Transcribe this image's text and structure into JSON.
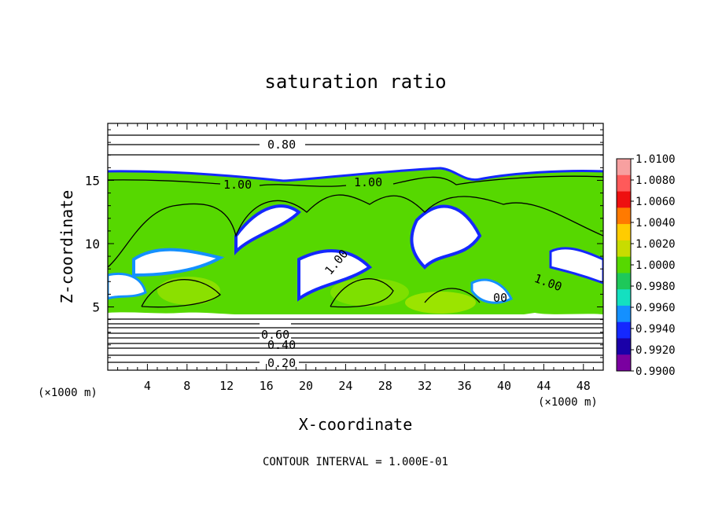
{
  "chart_data": {
    "type": "heatmap",
    "title": "saturation ratio",
    "xlabel": "X-coordinate",
    "ylabel": "Z-coordinate",
    "x_units": "(×1000 m)",
    "z_units": "(×1000 m)",
    "xlim": [
      0,
      50
    ],
    "zlim": [
      0,
      19.5
    ],
    "x_ticks": [
      "4",
      "8",
      "12",
      "16",
      "20",
      "24",
      "28",
      "32",
      "36",
      "40",
      "44",
      "48"
    ],
    "z_ticks": [
      "5",
      "10",
      "15"
    ],
    "contour_interval_text": "CONTOUR INTERVAL = 1.000E-01",
    "contour_labels": [
      "0.80",
      "1.00",
      "1.00",
      "1.00",
      "1.00",
      "00",
      "0.60",
      "0.40",
      "0.20"
    ],
    "colorbar": {
      "levels": [
        "1.0100",
        "1.0080",
        "1.0060",
        "1.0040",
        "1.0020",
        "1.0000",
        "0.9980",
        "0.9960",
        "0.9940",
        "0.9920",
        "0.9900"
      ],
      "colors": [
        "#f7a0a0",
        "#ff5a5a",
        "#ee1010",
        "#ff7a00",
        "#ffcc00",
        "#c8dc00",
        "#56d800",
        "#1ec85a",
        "#14e0c0",
        "#1490ff",
        "#1428ff",
        "#1a00a8",
        "#7a00a0"
      ]
    },
    "field_description_regions": {
      "moist_layer_top_z": 16,
      "moist_layer_bottom_z": 4.5
    }
  }
}
